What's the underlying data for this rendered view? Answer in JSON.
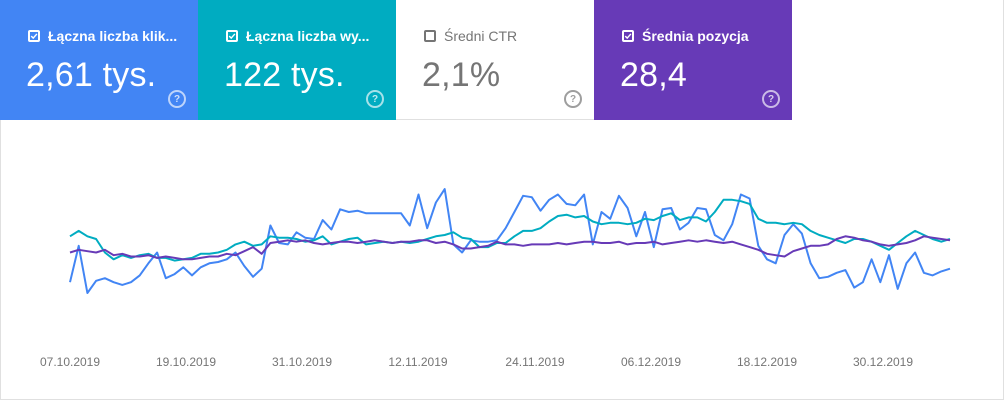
{
  "cards": [
    {
      "label": "Łączna liczba klik...",
      "value": "2,61 tys.",
      "checked": true,
      "color": "#4285f4"
    },
    {
      "label": "Łączna liczba wy...",
      "value": "122 tys.",
      "checked": true,
      "color": "#00acc1"
    },
    {
      "label": "Średni CTR",
      "value": "2,1%",
      "checked": false,
      "color": "#ffffff"
    },
    {
      "label": "Średnia pozycja",
      "value": "28,4",
      "checked": true,
      "color": "#673ab7"
    }
  ],
  "help_icon": "question-circle-icon",
  "chart_data": {
    "type": "line",
    "x_ticks": [
      "07.10.2019",
      "19.10.2019",
      "31.10.2019",
      "12.11.2019",
      "24.11.2019",
      "06.12.2019",
      "18.12.2019",
      "30.12.2019"
    ],
    "y_axis_visible": false,
    "series": [
      {
        "color": "#4285f4",
        "values": [
          28,
          55,
          20,
          29,
          31,
          28,
          26,
          28,
          33,
          42,
          50,
          31,
          34,
          39,
          33,
          39,
          42,
          43,
          45,
          50,
          40,
          32,
          38,
          70,
          57,
          56,
          65,
          61,
          60,
          74,
          67,
          82,
          80,
          81,
          79,
          79,
          79,
          79,
          79,
          70,
          93,
          68,
          87,
          97,
          56,
          50,
          59,
          58,
          58,
          59,
          68,
          80,
          92,
          91,
          81,
          89,
          93,
          86,
          85,
          93,
          56,
          80,
          75,
          92,
          83,
          62,
          80,
          54,
          82,
          83,
          67,
          72,
          83,
          82,
          63,
          59,
          71,
          93,
          90,
          55,
          45,
          42,
          63,
          71,
          64,
          42,
          31,
          32,
          35,
          37,
          24,
          28,
          45,
          28,
          48,
          23,
          42,
          50,
          35,
          33,
          36,
          38
        ]
      },
      {
        "color": "#00acc1",
        "values": [
          62,
          66,
          62,
          60,
          50,
          45,
          48,
          46,
          48,
          49,
          46,
          46,
          44,
          45,
          46,
          49,
          49,
          50,
          52,
          56,
          58,
          55,
          56,
          62,
          61,
          61,
          60,
          58,
          59,
          62,
          56,
          58,
          60,
          61,
          56,
          57,
          58,
          57,
          58,
          57,
          58,
          60,
          62,
          63,
          65,
          61,
          60,
          54,
          54,
          57,
          57,
          62,
          66,
          66,
          68,
          73,
          77,
          78,
          76,
          77,
          73,
          71,
          72,
          72,
          71,
          72,
          75,
          74,
          77,
          79,
          74,
          76,
          76,
          73,
          80,
          89,
          89,
          88,
          86,
          75,
          72,
          72,
          71,
          72,
          71,
          66,
          63,
          61,
          59,
          57,
          60,
          60,
          58,
          55,
          52,
          57,
          62,
          66,
          63,
          60,
          58,
          60
        ]
      },
      {
        "color": "#673ab7",
        "values": [
          50,
          52,
          51,
          50,
          52,
          48,
          49,
          47,
          47,
          48,
          46,
          47,
          46,
          45,
          45,
          46,
          47,
          47,
          49,
          48,
          51,
          54,
          49,
          57,
          58,
          59,
          58,
          59,
          57,
          56,
          57,
          58,
          58,
          57,
          58,
          59,
          58,
          57,
          58,
          58,
          59,
          59,
          57,
          58,
          56,
          53,
          53,
          54,
          55,
          58,
          56,
          56,
          55,
          56,
          56,
          56,
          57,
          56,
          57,
          58,
          58,
          57,
          57,
          58,
          56,
          57,
          57,
          58,
          56,
          57,
          58,
          59,
          58,
          59,
          58,
          57,
          58,
          56,
          54,
          52,
          49,
          48,
          47,
          51,
          53,
          55,
          55,
          56,
          60,
          62,
          61,
          59,
          58,
          56,
          55,
          56,
          57,
          59,
          62,
          61,
          60,
          59
        ]
      }
    ]
  }
}
